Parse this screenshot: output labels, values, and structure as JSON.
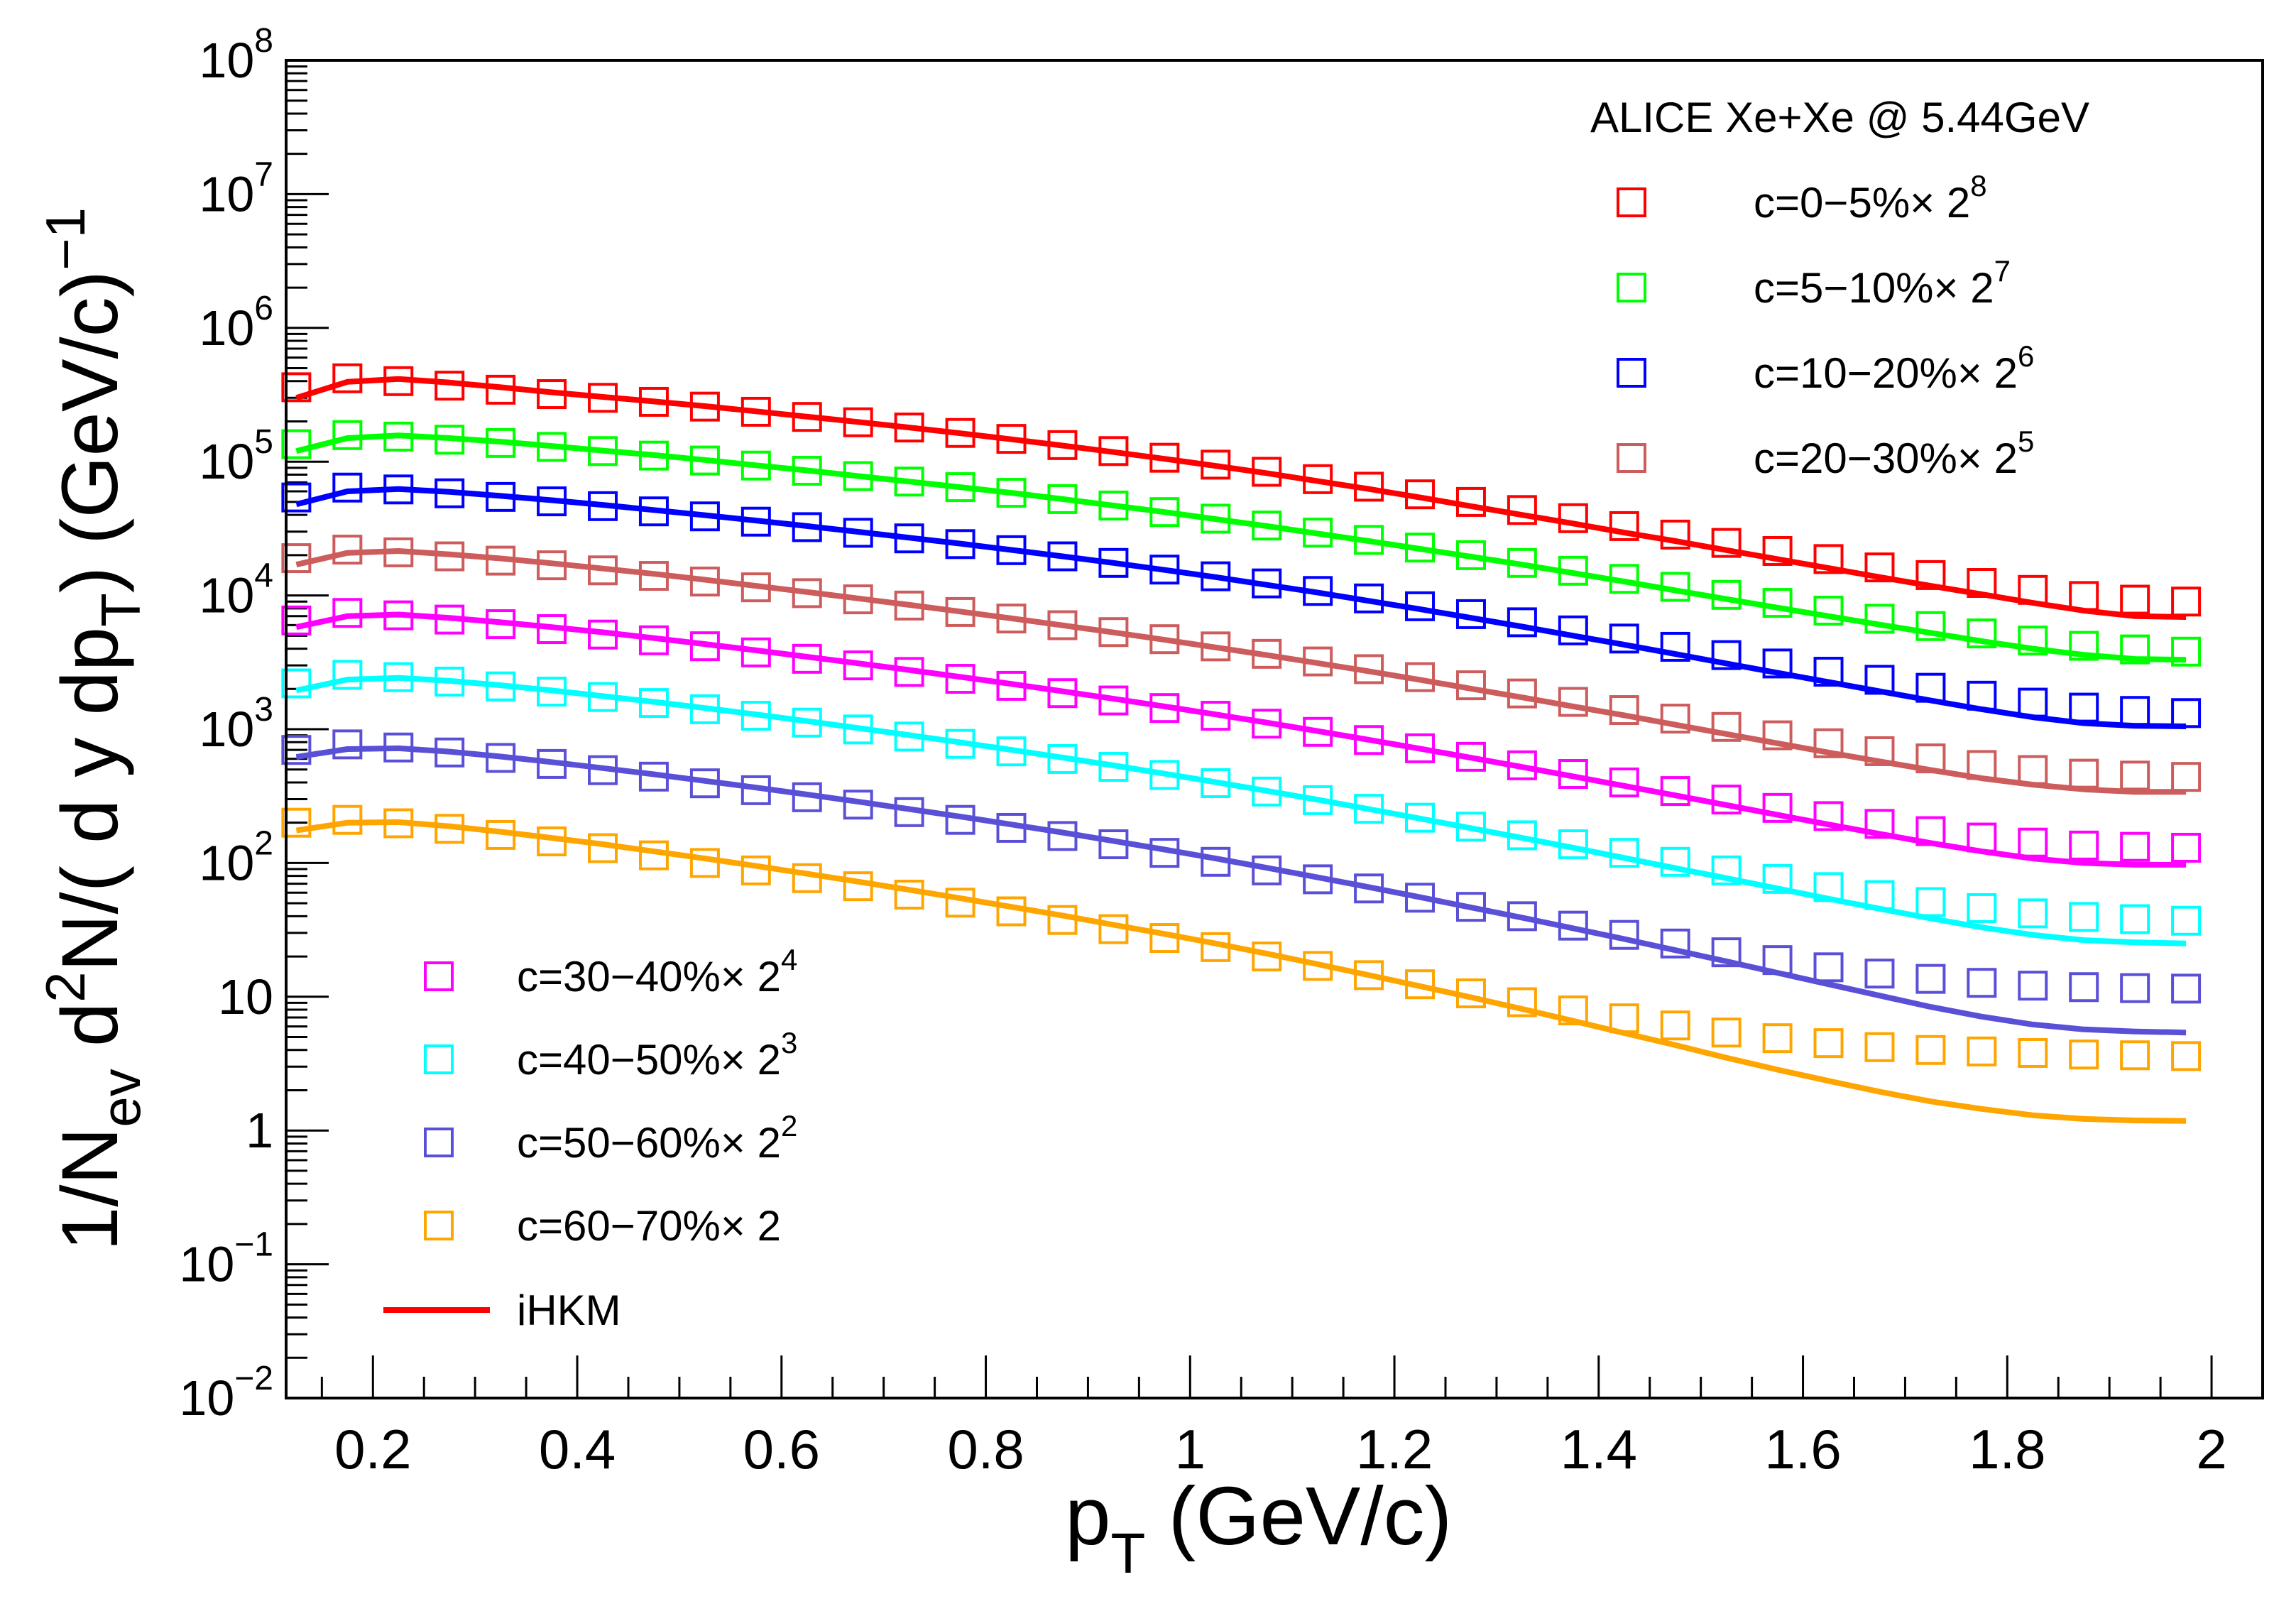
{
  "chart_data": {
    "type": "scatter",
    "title": "ALICE Xe+Xe @ 5.44GeV",
    "xlabel": {
      "main": "p",
      "sub": "T",
      "rest": " (GeV/c)"
    },
    "ylabel": {
      "p1": "1/N",
      "sub1": "ev",
      "p2": " d",
      "sup1": "2",
      "p3": "N/( d y dp",
      "sub2": "T",
      "p4": ") (GeV/c)",
      "sup2": "−1"
    },
    "xlim": [
      0.115,
      2.05
    ],
    "ylim_log10": [
      -2,
      8
    ],
    "xscale": "linear",
    "yscale": "log",
    "x_ticks": [
      "0.2",
      "0.4",
      "0.6",
      "0.8",
      "1",
      "1.2",
      "1.4",
      "1.6",
      "1.8",
      "2"
    ],
    "x_tick_values": [
      0.2,
      0.4,
      0.6,
      0.8,
      1.0,
      1.2,
      1.4,
      1.6,
      1.8,
      2.0
    ],
    "y_ticks": [
      {
        "exp": 8,
        "base": "10",
        "sup": "8"
      },
      {
        "exp": 7,
        "base": "10",
        "sup": "7"
      },
      {
        "exp": 6,
        "base": "10",
        "sup": "6"
      },
      {
        "exp": 5,
        "base": "10",
        "sup": "5"
      },
      {
        "exp": 4,
        "base": "10",
        "sup": "4"
      },
      {
        "exp": 3,
        "base": "10",
        "sup": "3"
      },
      {
        "exp": 2,
        "base": "10",
        "sup": "2"
      },
      {
        "exp": 1,
        "base": "10",
        "sup": ""
      },
      {
        "exp": 0,
        "base": "1",
        "sup": ""
      },
      {
        "exp": -1,
        "base": "10",
        "sup": "−1"
      },
      {
        "exp": -2,
        "base": "10",
        "sup": "−2"
      }
    ],
    "x_points": [
      0.125,
      0.175,
      0.225,
      0.275,
      0.325,
      0.375,
      0.425,
      0.475,
      0.525,
      0.575,
      0.625,
      0.675,
      0.725,
      0.775,
      0.825,
      0.875,
      0.925,
      0.975,
      1.025,
      1.075,
      1.125,
      1.175,
      1.225,
      1.275,
      1.325,
      1.375,
      1.425,
      1.475,
      1.525,
      1.575,
      1.625,
      1.675,
      1.725,
      1.775,
      1.825,
      1.875,
      1.925,
      1.975
    ],
    "model_name": "iHKM",
    "series": [
      {
        "name": "c=0−5%",
        "factor_base": "× 2",
        "factor_exp": "8",
        "color": "#ff0000",
        "legend": "upper",
        "data": [
          360000,
          420000,
          400000,
          370000,
          345000,
          320000,
          300000,
          280000,
          258000,
          236000,
          216000,
          197000,
          180000,
          164000,
          148000,
          133000,
          120000,
          107000,
          95000,
          84000,
          74000,
          65000,
          57000,
          50000,
          43500,
          37800,
          33000,
          28500,
          24700,
          21500,
          18700,
          16200,
          14200,
          12400,
          11000,
          9900,
          9300,
          9000
        ],
        "model": [
          300000,
          395000,
          415000,
          390000,
          360000,
          330000,
          305000,
          282000,
          260000,
          238000,
          217000,
          198000,
          180000,
          163000,
          147000,
          132000,
          118000,
          105000,
          93000,
          82000,
          71500,
          62500,
          54000,
          46500,
          40000,
          34500,
          29500,
          25500,
          21800,
          18700,
          16000,
          13700,
          11800,
          10200,
          8800,
          7700,
          7000,
          6900
        ]
      },
      {
        "name": "c=5−10%",
        "factor_base": "× 2",
        "factor_exp": "7",
        "color": "#00ff00",
        "legend": "upper",
        "data": [
          135000,
          158000,
          154000,
          146000,
          138000,
          129000,
          120000,
          111000,
          102000,
          93500,
          85500,
          78000,
          71000,
          64500,
          58500,
          52500,
          47000,
          42000,
          37500,
          33300,
          29500,
          26000,
          22800,
          20000,
          17500,
          15300,
          13300,
          11600,
          10100,
          8800,
          7700,
          6700,
          5900,
          5200,
          4600,
          4200,
          3950,
          3800
        ],
        "model": [
          120000,
          150000,
          157000,
          150000,
          141000,
          131000,
          121000,
          112000,
          103000,
          94000,
          86000,
          78000,
          71000,
          64500,
          58500,
          52500,
          47000,
          42000,
          37200,
          33000,
          29000,
          25500,
          22300,
          19500,
          17000,
          14700,
          12700,
          10900,
          9400,
          8100,
          7000,
          6050,
          5250,
          4550,
          4000,
          3600,
          3350,
          3300
        ]
      },
      {
        "name": "c=10−20%",
        "factor_base": "× 2",
        "factor_exp": "6",
        "color": "#0000ff",
        "legend": "upper",
        "data": [
          54000,
          64000,
          62000,
          58000,
          54500,
          50500,
          46500,
          42500,
          39000,
          35600,
          32400,
          29400,
          26700,
          24200,
          21800,
          19600,
          17500,
          15600,
          13900,
          12300,
          10800,
          9500,
          8300,
          7250,
          6300,
          5480,
          4760,
          4130,
          3580,
          3100,
          2690,
          2340,
          2040,
          1780,
          1580,
          1450,
          1370,
          1320
        ],
        "model": [
          48000,
          60000,
          62500,
          59500,
          55500,
          51500,
          47500,
          43500,
          39800,
          36300,
          33000,
          29900,
          27000,
          24400,
          21900,
          19600,
          17500,
          15500,
          13700,
          12000,
          10500,
          9100,
          7900,
          6800,
          5850,
          5000,
          4280,
          3650,
          3100,
          2640,
          2250,
          1920,
          1640,
          1410,
          1230,
          1110,
          1060,
          1050
        ]
      },
      {
        "name": "c=20−30%",
        "factor_base": "× 2",
        "factor_exp": "5",
        "color": "#cd5c5c",
        "legend": "upper",
        "data": [
          19000,
          22000,
          21000,
          19600,
          18200,
          16800,
          15400,
          14000,
          12700,
          11500,
          10400,
          9350,
          8400,
          7520,
          6720,
          5990,
          5320,
          4710,
          4160,
          3660,
          3210,
          2810,
          2450,
          2130,
          1850,
          1600,
          1390,
          1200,
          1040,
          900,
          785,
          685,
          605,
          540,
          495,
          465,
          450,
          440
        ],
        "model": [
          17000,
          20800,
          21500,
          20300,
          18900,
          17400,
          15900,
          14500,
          13100,
          11800,
          10600,
          9500,
          8500,
          7580,
          6740,
          5980,
          5290,
          4660,
          4090,
          3580,
          3120,
          2710,
          2340,
          2010,
          1730,
          1480,
          1270,
          1080,
          920,
          785,
          670,
          575,
          495,
          430,
          385,
          355,
          340,
          340
        ]
      },
      {
        "name": "c=30−40%",
        "factor_base": "× 2",
        "factor_exp": "4",
        "color": "#ff00ff",
        "legend": "lower",
        "data": [
          6500,
          7400,
          7100,
          6600,
          6100,
          5600,
          5100,
          4620,
          4170,
          3750,
          3360,
          3000,
          2680,
          2380,
          2110,
          1860,
          1640,
          1440,
          1260,
          1100,
          955,
          830,
          720,
          622,
          537,
          463,
          400,
          345,
          298,
          258,
          224,
          196,
          173,
          155,
          142,
          135,
          132,
          130
        ],
        "model": [
          5800,
          7000,
          7200,
          6800,
          6300,
          5800,
          5300,
          4800,
          4330,
          3890,
          3480,
          3110,
          2770,
          2460,
          2180,
          1920,
          1690,
          1480,
          1290,
          1120,
          968,
          834,
          715,
          612,
          522,
          444,
          377,
          320,
          271,
          229,
          194,
          165,
          141,
          122,
          108,
          100,
          97,
          97
        ]
      },
      {
        "name": "c=40−50%",
        "factor_base": "× 2",
        "factor_exp": "3",
        "color": "#00ffff",
        "legend": "lower",
        "data": [
          2200,
          2550,
          2450,
          2270,
          2090,
          1910,
          1740,
          1570,
          1410,
          1260,
          1120,
          996,
          881,
          777,
          683,
          599,
          523,
          455,
          395,
          342,
          295,
          254,
          218,
          187,
          161,
          138,
          119,
          102,
          88,
          76,
          66,
          57.5,
          51,
          46,
          42,
          39.5,
          38,
          37
        ],
        "model": [
          1950,
          2350,
          2420,
          2300,
          2130,
          1950,
          1770,
          1600,
          1440,
          1290,
          1150,
          1020,
          903,
          797,
          701,
          614,
          536,
          465,
          402,
          346,
          297,
          253,
          215,
          182,
          154,
          130,
          109,
          91.5,
          77,
          64.5,
          54,
          45.5,
          38.5,
          33,
          29,
          26.5,
          25.5,
          25
        ]
      },
      {
        "name": "c=50−60%",
        "factor_base": "× 2",
        "factor_exp": "2",
        "color": "#5a50d8",
        "legend": "lower",
        "data": [
          700,
          770,
          730,
          670,
          610,
          550,
          494,
          442,
          394,
          350,
          310,
          273,
          240,
          210,
          183,
          159,
          138,
          119,
          102,
          88,
          75.5,
          64.5,
          55,
          47,
          40,
          34,
          29,
          25,
          21.5,
          18.8,
          16.6,
          14.9,
          13.6,
          12.7,
          12.1,
          11.8,
          11.6,
          11.5
        ],
        "model": [
          620,
          710,
          720,
          680,
          625,
          568,
          512,
          460,
          411,
          366,
          325,
          287,
          253,
          222,
          194,
          169,
          146,
          126,
          108,
          92,
          78,
          66,
          55.5,
          46.5,
          39,
          32.5,
          27,
          22.3,
          18.4,
          15.1,
          12.4,
          10.2,
          8.4,
          7.1,
          6.2,
          5.7,
          5.5,
          5.4
        ]
      },
      {
        "name": "c=60−70%",
        "factor_base": "× 2",
        "factor_exp": "",
        "color": "#ffa500",
        "legend": "lower",
        "data": [
          200,
          210,
          198,
          180,
          162,
          145,
          129,
          114,
          100,
          88,
          77,
          67,
          58,
          50.5,
          43.5,
          37.5,
          32,
          27.5,
          23.5,
          20,
          17,
          14.5,
          12.4,
          10.6,
          9.1,
          7.9,
          6.9,
          6.1,
          5.4,
          4.9,
          4.5,
          4.2,
          4.0,
          3.9,
          3.8,
          3.7,
          3.65,
          3.6
        ],
        "model": [
          175,
          200,
          202,
          188,
          171,
          154,
          138,
          122,
          108,
          95,
          83,
          72.5,
          63,
          54.5,
          47,
          40.5,
          34.5,
          29.5,
          25,
          21,
          17.5,
          14.5,
          12,
          9.9,
          8.1,
          6.6,
          5.35,
          4.35,
          3.5,
          2.85,
          2.35,
          1.95,
          1.65,
          1.45,
          1.3,
          1.22,
          1.19,
          1.18
        ]
      }
    ]
  }
}
